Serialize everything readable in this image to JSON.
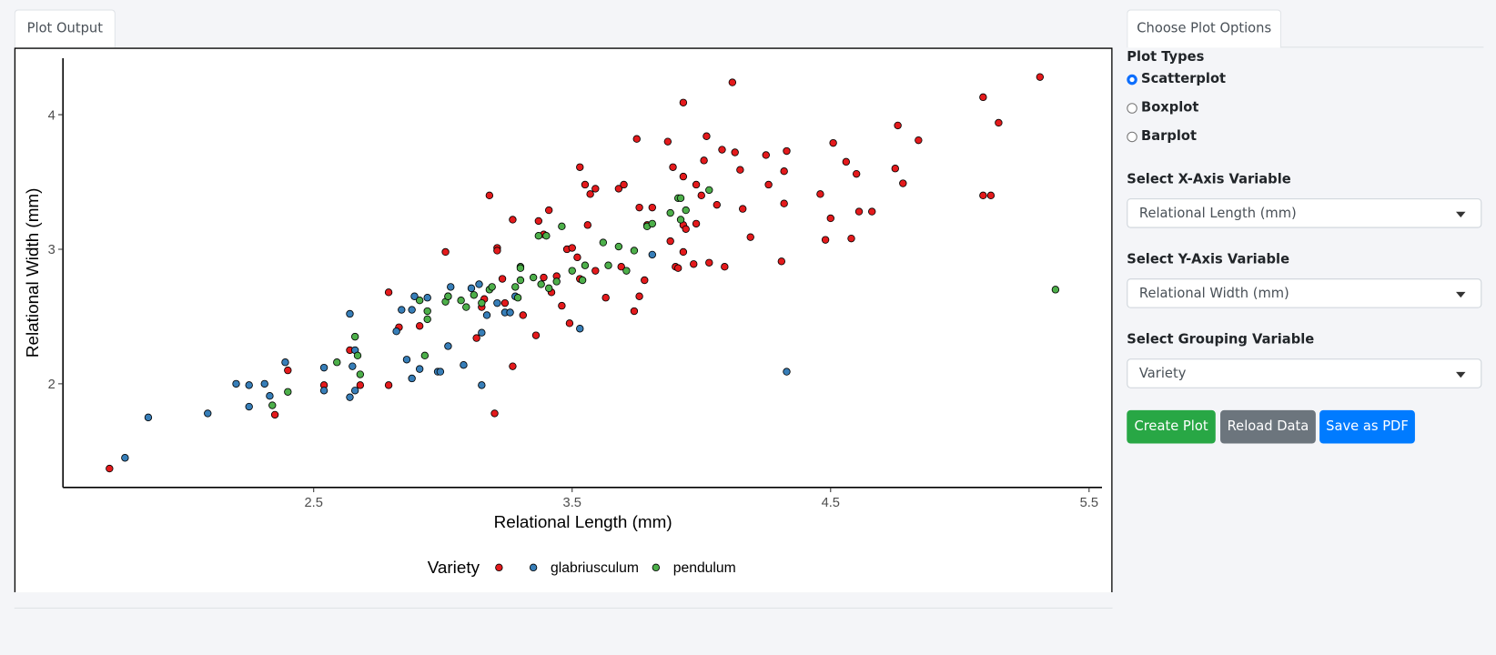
{
  "tabs": {
    "plot": "Plot Output",
    "options": "Choose Plot Options"
  },
  "plot_types": {
    "label": "Plot Types",
    "options": [
      "Scatterplot",
      "Boxplot",
      "Barplot"
    ],
    "selected": 0
  },
  "selects": [
    {
      "label": "Select X-Axis Variable",
      "value": "Relational Length (mm)"
    },
    {
      "label": "Select Y-Axis Variable",
      "value": "Relational Width (mm)"
    },
    {
      "label": "Select Grouping Variable",
      "value": "Variety"
    }
  ],
  "buttons": [
    "Create Plot",
    "Reload Data",
    "Save as PDF"
  ],
  "chart_data": {
    "type": "scatter",
    "x_label": "Relational Length (mm)",
    "y_label": "Relational Width (mm)",
    "legend_title": "Variety",
    "xlim": [
      1.53,
      5.55
    ],
    "ylim": [
      1.23,
      4.42
    ],
    "xticks": [
      2.5,
      3.5,
      4.5,
      5.5
    ],
    "yticks": [
      2,
      3,
      4
    ],
    "grid": false,
    "series": [
      {
        "name": null,
        "color": "#e41a1c",
        "x": [
          1.71,
          2.35,
          2.4,
          2.54,
          2.64,
          2.68,
          2.79,
          2.79,
          2.83,
          2.91,
          3.01,
          3.02,
          3.13,
          3.15,
          3.16,
          3.18,
          3.2,
          3.21,
          3.21,
          3.23,
          3.24,
          3.27,
          3.27,
          3.31,
          3.36,
          3.37,
          3.39,
          3.39,
          3.41,
          3.42,
          3.44,
          3.46,
          3.48,
          3.49,
          3.5,
          3.52,
          3.53,
          3.53,
          3.55,
          3.56,
          3.57,
          3.59,
          3.59,
          3.63,
          3.68,
          3.69,
          3.7,
          3.74,
          3.75,
          3.76,
          3.76,
          3.78,
          3.79,
          3.81,
          3.87,
          3.88,
          3.89,
          3.9,
          3.91,
          3.93,
          3.93,
          3.93,
          3.94,
          3.93,
          3.97,
          3.98,
          3.98,
          4.0,
          4.01,
          4.02,
          4.03,
          4.06,
          4.08,
          4.09,
          4.12,
          4.13,
          4.15,
          4.16,
          4.19,
          4.25,
          4.26,
          4.31,
          4.32,
          4.32,
          4.33,
          4.46,
          4.48,
          4.5,
          4.51,
          4.56,
          4.58,
          4.6,
          4.61,
          4.66,
          4.75,
          4.76,
          4.78,
          4.84,
          5.09,
          5.09,
          5.12,
          5.15,
          5.31
        ],
        "values": [
          1.37,
          1.77,
          2.1,
          1.99,
          2.25,
          1.99,
          2.68,
          1.99,
          2.42,
          2.43,
          2.98,
          2.65,
          2.34,
          2.57,
          2.63,
          3.4,
          1.78,
          3.01,
          2.99,
          2.78,
          2.6,
          2.13,
          3.22,
          2.51,
          2.36,
          3.21,
          3.11,
          2.79,
          3.29,
          2.68,
          2.8,
          2.58,
          3.0,
          2.45,
          3.01,
          2.94,
          3.61,
          2.78,
          3.48,
          3.18,
          3.41,
          2.84,
          3.45,
          2.64,
          3.45,
          2.87,
          3.48,
          2.54,
          3.82,
          3.31,
          2.65,
          2.77,
          3.18,
          3.31,
          3.8,
          3.06,
          3.61,
          2.87,
          2.86,
          3.18,
          4.09,
          3.54,
          3.15,
          2.98,
          2.89,
          3.48,
          3.19,
          3.4,
          3.66,
          3.84,
          2.9,
          3.33,
          3.74,
          2.87,
          4.24,
          3.72,
          3.59,
          3.3,
          3.09,
          3.7,
          3.48,
          2.91,
          3.58,
          3.34,
          3.73,
          3.41,
          3.07,
          3.23,
          3.79,
          3.65,
          3.08,
          3.56,
          3.28,
          3.28,
          3.6,
          3.92,
          3.49,
          3.81,
          4.13,
          3.4,
          3.4,
          3.94,
          4.28
        ]
      },
      {
        "name": "glabriusculum",
        "color": "#377eb8",
        "x": [
          1.77,
          1.86,
          2.09,
          2.2,
          2.25,
          2.25,
          2.31,
          2.33,
          2.39,
          2.54,
          2.54,
          2.64,
          2.64,
          2.65,
          2.66,
          2.66,
          2.82,
          2.84,
          2.86,
          2.88,
          2.88,
          2.89,
          2.91,
          2.94,
          2.98,
          2.99,
          3.02,
          3.03,
          3.08,
          3.11,
          3.14,
          3.15,
          3.15,
          3.17,
          3.21,
          3.24,
          3.26,
          3.28,
          3.53,
          3.81,
          4.33
        ],
        "values": [
          1.45,
          1.75,
          1.78,
          2.0,
          1.83,
          1.99,
          2.0,
          1.91,
          2.16,
          2.12,
          1.95,
          2.52,
          1.9,
          2.13,
          2.25,
          1.95,
          2.39,
          2.55,
          2.18,
          2.55,
          2.04,
          2.65,
          2.11,
          2.64,
          2.09,
          2.09,
          2.28,
          2.72,
          2.14,
          2.71,
          2.74,
          2.38,
          1.99,
          2.51,
          2.6,
          2.53,
          2.53,
          2.65,
          2.41,
          2.96,
          2.09
        ]
      },
      {
        "name": "pendulum",
        "color": "#4daf4a",
        "x": [
          2.34,
          2.4,
          2.59,
          2.66,
          2.67,
          2.68,
          2.91,
          2.93,
          2.94,
          2.94,
          3.01,
          3.02,
          3.07,
          3.09,
          3.12,
          3.15,
          3.18,
          3.19,
          3.28,
          3.29,
          3.3,
          3.3,
          3.3,
          3.35,
          3.37,
          3.38,
          3.4,
          3.41,
          3.44,
          3.46,
          3.5,
          3.54,
          3.55,
          3.62,
          3.64,
          3.68,
          3.71,
          3.74,
          3.79,
          3.81,
          3.88,
          3.91,
          3.92,
          3.92,
          3.94,
          4.03,
          5.37
        ],
        "values": [
          1.84,
          1.94,
          2.16,
          2.35,
          2.21,
          2.07,
          2.62,
          2.21,
          2.48,
          2.54,
          2.61,
          2.65,
          2.62,
          2.57,
          2.66,
          2.6,
          2.7,
          2.72,
          2.72,
          2.64,
          2.87,
          2.86,
          2.77,
          2.79,
          3.1,
          2.74,
          3.1,
          2.71,
          2.76,
          3.17,
          2.84,
          2.77,
          2.88,
          3.05,
          2.88,
          3.02,
          2.84,
          2.99,
          3.17,
          3.19,
          3.27,
          3.38,
          3.38,
          3.22,
          3.29,
          3.44,
          2.7
        ]
      }
    ]
  }
}
